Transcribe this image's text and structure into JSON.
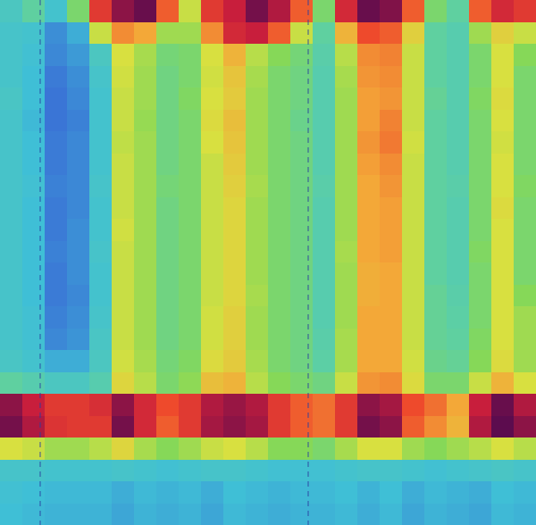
{
  "chart_data": {
    "type": "heatmap",
    "tick_labels": false,
    "zlim": [
      0,
      1
    ],
    "cells": [
      [
        0.38,
        0.45,
        0.35,
        0.5,
        0.85,
        0.95,
        0.98,
        0.8,
        0.6,
        0.85,
        0.9,
        0.97,
        0.92,
        0.8,
        0.5,
        0.88,
        0.98,
        0.96,
        0.8,
        0.5,
        0.45,
        0.8,
        0.88,
        0.85
      ],
      [
        0.36,
        0.35,
        0.25,
        0.3,
        0.6,
        0.75,
        0.72,
        0.55,
        0.55,
        0.75,
        0.88,
        0.9,
        0.8,
        0.6,
        0.45,
        0.7,
        0.82,
        0.8,
        0.65,
        0.45,
        0.42,
        0.55,
        0.65,
        0.6
      ],
      [
        0.36,
        0.34,
        0.24,
        0.27,
        0.38,
        0.62,
        0.56,
        0.49,
        0.5,
        0.62,
        0.7,
        0.58,
        0.52,
        0.49,
        0.43,
        0.58,
        0.75,
        0.76,
        0.6,
        0.45,
        0.42,
        0.5,
        0.62,
        0.52
      ],
      [
        0.36,
        0.33,
        0.22,
        0.25,
        0.36,
        0.61,
        0.55,
        0.48,
        0.5,
        0.61,
        0.67,
        0.56,
        0.5,
        0.48,
        0.42,
        0.56,
        0.74,
        0.75,
        0.6,
        0.45,
        0.42,
        0.5,
        0.62,
        0.5
      ],
      [
        0.37,
        0.33,
        0.21,
        0.24,
        0.35,
        0.6,
        0.55,
        0.48,
        0.51,
        0.62,
        0.66,
        0.55,
        0.5,
        0.48,
        0.42,
        0.55,
        0.73,
        0.74,
        0.6,
        0.46,
        0.42,
        0.51,
        0.63,
        0.5
      ],
      [
        0.36,
        0.32,
        0.21,
        0.23,
        0.35,
        0.6,
        0.54,
        0.48,
        0.5,
        0.63,
        0.68,
        0.55,
        0.5,
        0.47,
        0.42,
        0.55,
        0.73,
        0.76,
        0.6,
        0.45,
        0.42,
        0.5,
        0.62,
        0.5
      ],
      [
        0.36,
        0.33,
        0.22,
        0.24,
        0.35,
        0.59,
        0.55,
        0.48,
        0.5,
        0.62,
        0.67,
        0.55,
        0.5,
        0.48,
        0.42,
        0.55,
        0.74,
        0.77,
        0.61,
        0.45,
        0.42,
        0.5,
        0.61,
        0.5
      ],
      [
        0.36,
        0.33,
        0.22,
        0.24,
        0.35,
        0.6,
        0.55,
        0.48,
        0.5,
        0.6,
        0.66,
        0.55,
        0.5,
        0.48,
        0.42,
        0.55,
        0.73,
        0.75,
        0.6,
        0.45,
        0.42,
        0.5,
        0.62,
        0.5
      ],
      [
        0.36,
        0.34,
        0.23,
        0.24,
        0.36,
        0.6,
        0.55,
        0.49,
        0.5,
        0.6,
        0.65,
        0.56,
        0.5,
        0.48,
        0.43,
        0.55,
        0.72,
        0.74,
        0.6,
        0.45,
        0.43,
        0.5,
        0.62,
        0.51
      ],
      [
        0.36,
        0.33,
        0.22,
        0.24,
        0.35,
        0.6,
        0.55,
        0.48,
        0.5,
        0.6,
        0.64,
        0.55,
        0.5,
        0.48,
        0.42,
        0.55,
        0.72,
        0.73,
        0.6,
        0.45,
        0.42,
        0.5,
        0.63,
        0.5
      ],
      [
        0.36,
        0.33,
        0.22,
        0.25,
        0.35,
        0.61,
        0.55,
        0.48,
        0.5,
        0.6,
        0.64,
        0.55,
        0.5,
        0.48,
        0.42,
        0.55,
        0.72,
        0.73,
        0.6,
        0.45,
        0.42,
        0.5,
        0.62,
        0.5
      ],
      [
        0.36,
        0.33,
        0.23,
        0.25,
        0.36,
        0.6,
        0.55,
        0.48,
        0.5,
        0.6,
        0.64,
        0.55,
        0.5,
        0.48,
        0.42,
        0.56,
        0.72,
        0.73,
        0.6,
        0.45,
        0.42,
        0.51,
        0.62,
        0.5
      ],
      [
        0.36,
        0.33,
        0.22,
        0.25,
        0.35,
        0.6,
        0.55,
        0.48,
        0.5,
        0.6,
        0.64,
        0.55,
        0.5,
        0.48,
        0.42,
        0.55,
        0.71,
        0.72,
        0.6,
        0.45,
        0.42,
        0.5,
        0.62,
        0.5
      ],
      [
        0.36,
        0.33,
        0.22,
        0.24,
        0.35,
        0.6,
        0.55,
        0.48,
        0.5,
        0.6,
        0.64,
        0.56,
        0.5,
        0.48,
        0.42,
        0.55,
        0.71,
        0.72,
        0.6,
        0.46,
        0.43,
        0.5,
        0.62,
        0.52
      ],
      [
        0.36,
        0.34,
        0.23,
        0.25,
        0.36,
        0.6,
        0.55,
        0.48,
        0.5,
        0.61,
        0.65,
        0.55,
        0.5,
        0.48,
        0.42,
        0.55,
        0.72,
        0.72,
        0.6,
        0.46,
        0.44,
        0.5,
        0.62,
        0.55
      ],
      [
        0.36,
        0.34,
        0.24,
        0.26,
        0.37,
        0.6,
        0.55,
        0.48,
        0.5,
        0.61,
        0.65,
        0.55,
        0.5,
        0.48,
        0.43,
        0.56,
        0.72,
        0.72,
        0.6,
        0.46,
        0.45,
        0.51,
        0.62,
        0.55
      ],
      [
        0.37,
        0.35,
        0.3,
        0.3,
        0.38,
        0.61,
        0.56,
        0.49,
        0.51,
        0.63,
        0.66,
        0.56,
        0.5,
        0.48,
        0.44,
        0.56,
        0.72,
        0.72,
        0.61,
        0.47,
        0.46,
        0.52,
        0.63,
        0.55
      ],
      [
        0.45,
        0.42,
        0.38,
        0.38,
        0.42,
        0.64,
        0.58,
        0.5,
        0.53,
        0.68,
        0.7,
        0.58,
        0.52,
        0.5,
        0.48,
        0.6,
        0.74,
        0.75,
        0.63,
        0.5,
        0.5,
        0.6,
        0.7,
        0.62
      ],
      [
        0.95,
        0.9,
        0.85,
        0.85,
        0.87,
        0.95,
        0.88,
        0.82,
        0.85,
        0.92,
        0.94,
        0.92,
        0.85,
        0.8,
        0.78,
        0.85,
        0.95,
        0.93,
        0.82,
        0.78,
        0.72,
        0.9,
        0.98,
        0.92
      ],
      [
        0.97,
        0.92,
        0.86,
        0.85,
        0.85,
        0.97,
        0.88,
        0.8,
        0.85,
        0.93,
        0.95,
        0.93,
        0.85,
        0.8,
        0.78,
        0.85,
        0.97,
        0.95,
        0.8,
        0.75,
        0.7,
        0.92,
        0.99,
        0.95
      ],
      [
        0.62,
        0.6,
        0.55,
        0.55,
        0.58,
        0.64,
        0.56,
        0.52,
        0.55,
        0.6,
        0.62,
        0.58,
        0.52,
        0.52,
        0.5,
        0.56,
        0.62,
        0.62,
        0.55,
        0.52,
        0.55,
        0.58,
        0.62,
        0.58
      ],
      [
        0.36,
        0.36,
        0.35,
        0.35,
        0.35,
        0.36,
        0.35,
        0.34,
        0.35,
        0.36,
        0.36,
        0.35,
        0.34,
        0.34,
        0.34,
        0.35,
        0.36,
        0.36,
        0.35,
        0.34,
        0.35,
        0.36,
        0.37,
        0.36
      ],
      [
        0.34,
        0.33,
        0.32,
        0.32,
        0.32,
        0.3,
        0.32,
        0.31,
        0.32,
        0.3,
        0.33,
        0.32,
        0.31,
        0.32,
        0.32,
        0.33,
        0.31,
        0.33,
        0.3,
        0.32,
        0.31,
        0.3,
        0.33,
        0.32
      ],
      [
        0.33,
        0.32,
        0.31,
        0.31,
        0.31,
        0.29,
        0.31,
        0.3,
        0.31,
        0.29,
        0.32,
        0.31,
        0.3,
        0.31,
        0.31,
        0.32,
        0.3,
        0.32,
        0.29,
        0.31,
        0.3,
        0.29,
        0.32,
        0.31
      ]
    ]
  }
}
